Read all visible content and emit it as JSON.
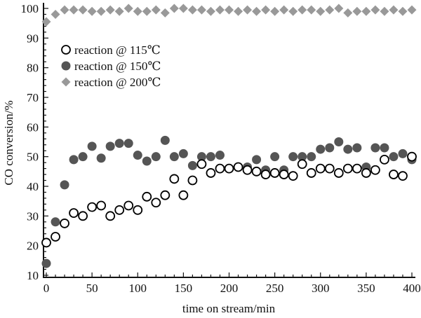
{
  "chart_data": {
    "type": "scatter",
    "title": "",
    "xlabel": "time on stream/min",
    "ylabel": "CO conversion/%",
    "xlim": [
      0,
      400
    ],
    "ylim": [
      10,
      100
    ],
    "xticks": [
      "0",
      "50",
      "100",
      "150",
      "200",
      "250",
      "300",
      "350",
      "400"
    ],
    "yticks": [
      "10",
      "20",
      "30",
      "40",
      "50",
      "60",
      "70",
      "80",
      "90",
      "100"
    ],
    "grid": false,
    "legend_position": "top-left",
    "x": [
      0,
      10,
      20,
      30,
      40,
      50,
      60,
      70,
      80,
      90,
      100,
      110,
      120,
      130,
      140,
      150,
      160,
      170,
      180,
      190,
      200,
      210,
      220,
      230,
      240,
      250,
      260,
      270,
      280,
      290,
      300,
      310,
      320,
      330,
      340,
      350,
      360,
      370,
      380,
      390,
      400
    ],
    "series": [
      {
        "name": "reaction @ 115℃",
        "marker": "open-circle",
        "color": "#000000",
        "values": [
          21,
          23,
          27.5,
          31,
          30,
          33,
          33.5,
          30,
          32,
          33.5,
          32,
          36.5,
          34.5,
          37,
          42.5,
          37,
          42,
          47.5,
          44.5,
          46,
          46,
          46.5,
          45.5,
          45,
          44,
          44.5,
          44,
          43.5,
          47.5,
          44.5,
          46,
          46,
          44.5,
          46,
          46,
          44.5,
          45.5,
          49,
          44,
          43.5,
          50
        ]
      },
      {
        "name": "reaction @ 150℃",
        "marker": "filled-circle",
        "color": "#555555",
        "values": [
          14,
          28,
          40.5,
          49,
          50,
          53.5,
          49.5,
          53.5,
          54.5,
          54.5,
          50.5,
          48.5,
          50,
          55.5,
          50,
          51,
          47,
          50,
          50,
          50.5,
          46,
          46.5,
          46.5,
          49,
          45.5,
          50,
          45.5,
          50,
          50,
          50,
          52.5,
          53,
          55,
          52.5,
          53,
          46.5,
          53,
          53,
          50,
          51,
          49
        ]
      },
      {
        "name": "reaction @ 200℃",
        "marker": "diamond",
        "color": "#999999",
        "values": [
          95.5,
          98,
          99.5,
          99.5,
          99.5,
          99,
          99,
          99.5,
          99,
          100,
          99,
          99,
          99.5,
          98.5,
          100,
          100,
          99.5,
          99.5,
          99,
          99.5,
          99.5,
          99,
          99.5,
          99,
          99.5,
          99,
          99.5,
          99,
          99.5,
          99.5,
          99,
          99.5,
          100,
          98.5,
          99,
          99,
          99.5,
          99,
          99.5,
          99,
          99.5
        ]
      }
    ]
  }
}
